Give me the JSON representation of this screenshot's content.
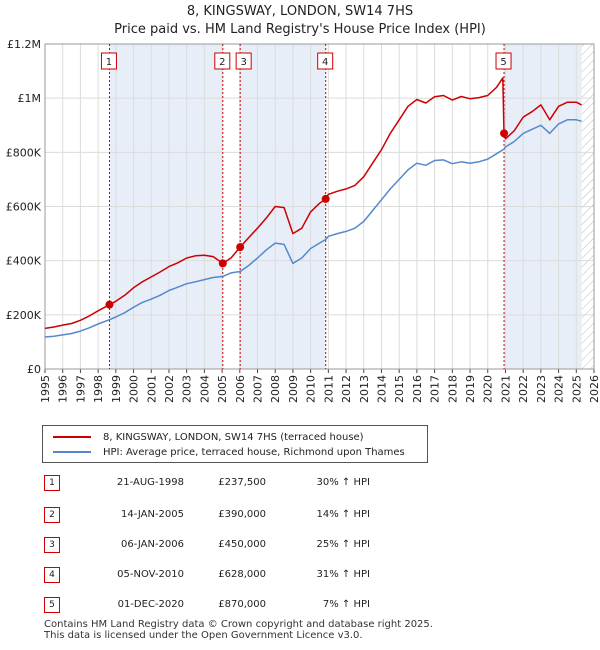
{
  "chart_data": {
    "type": "line",
    "title": "8, KINGSWAY, LONDON, SW14 7HS",
    "subtitle": "Price paid vs. HM Land Registry's House Price Index (HPI)",
    "xlabel": "",
    "ylabel": "",
    "xlim": [
      1995,
      2026
    ],
    "ylim": [
      0,
      1200000
    ],
    "grid": true,
    "x_ticks": [
      "1995",
      "1996",
      "1997",
      "1998",
      "1999",
      "2000",
      "2001",
      "2002",
      "2003",
      "2004",
      "2005",
      "2006",
      "2007",
      "2008",
      "2009",
      "2010",
      "2011",
      "2012",
      "2013",
      "2014",
      "2015",
      "2016",
      "2017",
      "2018",
      "2019",
      "2020",
      "2021",
      "2022",
      "2023",
      "2024",
      "2025",
      "2026"
    ],
    "y_ticks": [
      {
        "value": 0,
        "label": "£0"
      },
      {
        "value": 200000,
        "label": "£200K"
      },
      {
        "value": 400000,
        "label": "£400K"
      },
      {
        "value": 600000,
        "label": "£600K"
      },
      {
        "value": 800000,
        "label": "£800K"
      },
      {
        "value": 1000000,
        "label": "£1M"
      },
      {
        "value": 1200000,
        "label": "£1.2M"
      }
    ],
    "shaded_ranges": [
      [
        1998.64,
        2005.04
      ],
      [
        2006.02,
        2010.85
      ],
      [
        2020.92,
        2025.3
      ]
    ],
    "future_hatch_from": 2025.3,
    "series": [
      {
        "name": "8, KINGSWAY, LONDON, SW14 7HS (terraced house)",
        "color": "#cc0000",
        "x": [
          1995.0,
          1995.5,
          1996.0,
          1996.5,
          1997.0,
          1997.5,
          1998.0,
          1998.64,
          1999.0,
          1999.5,
          2000.0,
          2000.5,
          2001.0,
          2001.5,
          2002.0,
          2002.5,
          2003.0,
          2003.5,
          2004.0,
          2004.5,
          2005.04,
          2005.5,
          2006.02,
          2006.5,
          2007.0,
          2007.5,
          2008.0,
          2008.5,
          2009.0,
          2009.5,
          2010.0,
          2010.5,
          2010.85,
          2011.0,
          2011.5,
          2012.0,
          2012.5,
          2013.0,
          2013.5,
          2014.0,
          2014.5,
          2015.0,
          2015.5,
          2016.0,
          2016.5,
          2017.0,
          2017.5,
          2018.0,
          2018.5,
          2019.0,
          2019.5,
          2020.0,
          2020.5,
          2020.85,
          2020.92,
          2021.0,
          2021.5,
          2022.0,
          2022.5,
          2023.0,
          2023.5,
          2024.0,
          2024.5,
          2025.0,
          2025.3
        ],
        "values": [
          150000,
          155000,
          162000,
          168000,
          180000,
          196000,
          215000,
          237500,
          250000,
          272000,
          300000,
          322000,
          340000,
          358000,
          378000,
          392000,
          410000,
          418000,
          420000,
          415000,
          390000,
          410000,
          450000,
          485000,
          520000,
          558000,
          600000,
          596000,
          500000,
          520000,
          580000,
          612000,
          628000,
          645000,
          656000,
          665000,
          678000,
          710000,
          760000,
          810000,
          870000,
          920000,
          970000,
          995000,
          982000,
          1005000,
          1010000,
          993000,
          1006000,
          998000,
          1002000,
          1010000,
          1040000,
          1075000,
          870000,
          850000,
          880000,
          930000,
          950000,
          975000,
          920000,
          970000,
          985000,
          985000,
          975000
        ]
      },
      {
        "name": "HPI: Average price, terraced house, Richmond upon Thames",
        "color": "#5588cc",
        "x": [
          1995.0,
          1995.5,
          1996.0,
          1996.5,
          1997.0,
          1997.5,
          1998.0,
          1998.64,
          1999.0,
          1999.5,
          2000.0,
          2000.5,
          2001.0,
          2001.5,
          2002.0,
          2002.5,
          2003.0,
          2003.5,
          2004.0,
          2004.5,
          2005.04,
          2005.5,
          2006.02,
          2006.5,
          2007.0,
          2007.5,
          2008.0,
          2008.5,
          2009.0,
          2009.5,
          2010.0,
          2010.5,
          2010.85,
          2011.0,
          2011.5,
          2012.0,
          2012.5,
          2013.0,
          2013.5,
          2014.0,
          2014.5,
          2015.0,
          2015.5,
          2016.0,
          2016.5,
          2017.0,
          2017.5,
          2018.0,
          2018.5,
          2019.0,
          2019.5,
          2020.0,
          2020.5,
          2020.92,
          2021.0,
          2021.5,
          2022.0,
          2022.5,
          2023.0,
          2023.5,
          2024.0,
          2024.5,
          2025.0,
          2025.3
        ],
        "values": [
          118000,
          121000,
          126000,
          131000,
          140000,
          152000,
          166000,
          182000,
          192000,
          208000,
          228000,
          246000,
          258000,
          272000,
          290000,
          302000,
          315000,
          322000,
          330000,
          338000,
          342000,
          355000,
          360000,
          382000,
          410000,
          440000,
          465000,
          460000,
          390000,
          410000,
          445000,
          465000,
          478000,
          490000,
          500000,
          508000,
          520000,
          545000,
          585000,
          625000,
          665000,
          700000,
          735000,
          760000,
          752000,
          770000,
          772000,
          758000,
          765000,
          760000,
          765000,
          775000,
          795000,
          812000,
          820000,
          840000,
          870000,
          885000,
          900000,
          870000,
          905000,
          920000,
          920000,
          915000
        ]
      }
    ],
    "sales": [
      {
        "num": "1",
        "x": 1998.64,
        "value": 237500,
        "date": "21-AUG-1998",
        "price": "£237,500",
        "pct": "30% ↑ HPI"
      },
      {
        "num": "2",
        "x": 2005.04,
        "value": 390000,
        "date": "14-JAN-2005",
        "price": "£390,000",
        "pct": "14% ↑ HPI"
      },
      {
        "num": "3",
        "x": 2006.02,
        "value": 450000,
        "date": "06-JAN-2006",
        "price": "£450,000",
        "pct": "25% ↑ HPI"
      },
      {
        "num": "4",
        "x": 2010.85,
        "value": 628000,
        "date": "05-NOV-2010",
        "price": "£628,000",
        "pct": "31% ↑ HPI"
      },
      {
        "num": "5",
        "x": 2020.92,
        "value": 870000,
        "date": "01-DEC-2020",
        "price": "£870,000",
        "pct": "7% ↑ HPI"
      }
    ]
  },
  "legend": {
    "property": "8, KINGSWAY, LONDON, SW14 7HS (terraced house)",
    "hpi": "HPI: Average price, terraced house, Richmond upon Thames"
  },
  "colors": {
    "property": "#cc0000",
    "hpi": "#5588cc",
    "shade": "#e8eef8"
  },
  "footer": {
    "line1": "Contains HM Land Registry data © Crown copyright and database right 2025.",
    "line2": "This data is licensed under the Open Government Licence v3.0."
  }
}
